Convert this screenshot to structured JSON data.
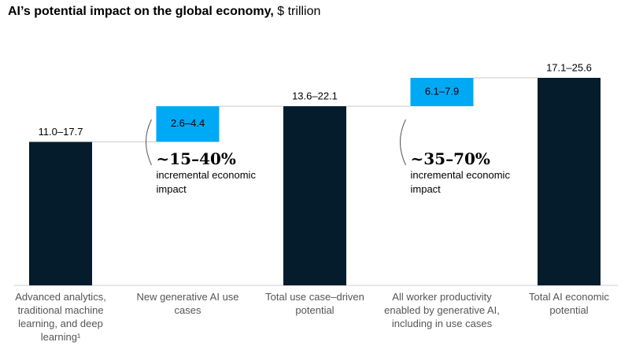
{
  "chart_data": {
    "type": "waterfall",
    "title": "AI’s potential impact on the global economy,",
    "unit": "$ trillion",
    "categories": [
      "Advanced analytics, traditional machine learning, and deep learning¹",
      "New generative AI use cases",
      "Total use case–driven potential",
      "All worker productivity enabled by generative AI, including in use cases",
      "Total AI economic potential"
    ],
    "measure": [
      "total",
      "relative",
      "total",
      "relative",
      "total"
    ],
    "values": [
      17.7,
      4.4,
      22.1,
      7.9,
      25.6
    ],
    "value_labels": [
      "11.0–17.7",
      "2.6–4.4",
      "13.6–22.1",
      "6.1–7.9",
      "17.1–25.6"
    ],
    "total_color": "#051c2c",
    "relative_color": "#00a9f4",
    "annotations": [
      {
        "category": 1,
        "headline": "~15–40%",
        "text": "incremental economic impact"
      },
      {
        "category": 3,
        "headline": "~35–70%",
        "text": "incremental economic impact"
      }
    ]
  }
}
